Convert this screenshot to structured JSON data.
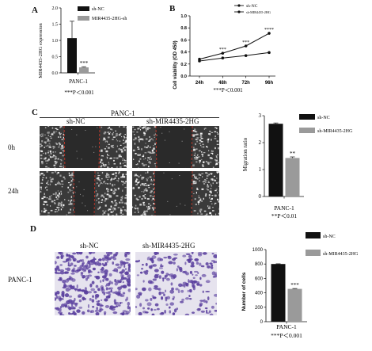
{
  "panels": {
    "a": "A",
    "b": "B",
    "c": "C",
    "d": "D"
  },
  "chart_data": [
    {
      "panel": "A",
      "type": "bar",
      "categories": [
        "PANC-1"
      ],
      "series": [
        {
          "name": "sh-NC",
          "values": [
            1.07
          ],
          "error": [
            0.52
          ],
          "color": "#111111"
        },
        {
          "name": "MIR4435-2HG-sh",
          "values": [
            0.17
          ],
          "error": [
            0.02
          ],
          "color": "#9a9a9a"
        }
      ],
      "ylabel": "MIR4435-2HG expression",
      "ylim": [
        0,
        2
      ],
      "yticks": [
        "0.0",
        "0.5",
        "1.0",
        "1.5",
        "2.0"
      ],
      "significance": "***",
      "footnote": "***P＜0.001"
    },
    {
      "panel": "B",
      "type": "line",
      "x": [
        "24h",
        "48h",
        "72h",
        "96h"
      ],
      "series": [
        {
          "name": "sh-NC",
          "values": [
            0.28,
            0.38,
            0.5,
            0.71
          ],
          "marker": "circle"
        },
        {
          "name": "sh-MIR4435-2HG",
          "values": [
            0.25,
            0.3,
            0.34,
            0.39
          ],
          "marker": "circle"
        }
      ],
      "ylabel": "Cell viability (OD 450)",
      "ylim": [
        0.0,
        1.0
      ],
      "yticks": [
        "0.0",
        "0.2",
        "0.4",
        "0.6",
        "0.8",
        "1.0"
      ],
      "significance": [
        "",
        "***",
        "***",
        "****"
      ],
      "footnote": "***P＜0.001"
    },
    {
      "panel": "C",
      "type": "bar",
      "categories": [
        "PANC-1"
      ],
      "series": [
        {
          "name": "sh-NC",
          "values": [
            2.7
          ],
          "error": [
            0.03
          ],
          "color": "#111111"
        },
        {
          "name": "sh-MIR4435-2HG",
          "values": [
            1.43
          ],
          "error": [
            0.04
          ],
          "color": "#9a9a9a"
        }
      ],
      "ylabel": "Migration ratio",
      "ylim": [
        0,
        3
      ],
      "yticks": [
        "0",
        "1",
        "2",
        "3"
      ],
      "significance": "**",
      "footnote": "**P＜0.01"
    },
    {
      "panel": "D",
      "type": "bar",
      "categories": [
        "PANC-1"
      ],
      "series": [
        {
          "name": "sh-NC",
          "values": [
            800
          ],
          "error": [
            3
          ],
          "color": "#111111"
        },
        {
          "name": "sh-MIR4435-2HG",
          "values": [
            455
          ],
          "error": [
            5
          ],
          "color": "#9a9a9a"
        }
      ],
      "ylabel": "Number of cells",
      "ylim": [
        0,
        1000
      ],
      "yticks": [
        "0",
        "200",
        "400",
        "600",
        "800",
        "1000"
      ],
      "significance": "***",
      "footnote": "***P＜0.001"
    }
  ],
  "wound": {
    "header": "PANC-1",
    "col1": "sh-NC",
    "col2": "sh-MIR4435-2HG",
    "row1": "0h",
    "row2": "24h"
  },
  "transwell": {
    "col1": "sh-NC",
    "col2": "sh-MIR4435-2HG",
    "row": "PANC-1"
  },
  "colors": {
    "nc": "#111111",
    "kd": "#9a9a9a",
    "wound_bg": "#3a3a3a",
    "scratch": "#2a2a2a",
    "edge": "#d23a2a",
    "stain_bg": "#e6e3ee",
    "stain": "#5a3f9e"
  }
}
